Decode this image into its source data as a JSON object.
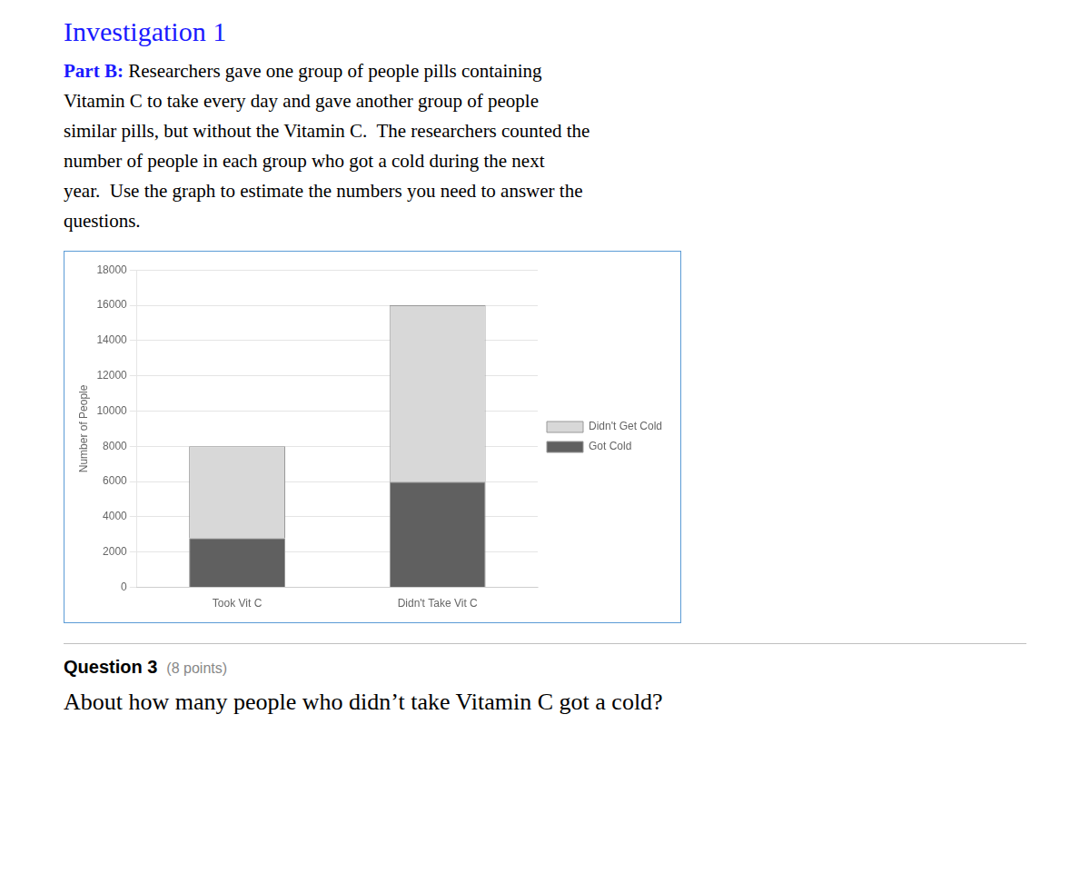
{
  "chart_data": {
    "type": "bar",
    "title": "Investigation 1",
    "annotations": [
      "Part B:",
      " Researchers gave one group of people pills containing",
      "Vitamin C to take every day and gave another group of people",
      "similar pills, but without the Vitamin C.  The researchers counted the",
      "number of people in each group who got a cold during the next",
      "year.  Use the graph to estimate the numbers you need to answer the",
      "questions.",
      "Question 3",
      "(8 points)",
      "About how many people who didn’t take Vitamin C got a cold?"
    ],
    "categories": [
      "Took Vit C",
      "Didn't Take Vit C"
    ],
    "series": [
      {
        "name": "Got Cold",
        "color": "#606060",
        "values": [
          2800,
          6000
        ]
      },
      {
        "name": "Didn't Get Cold",
        "color": "#d8d8d8",
        "values": [
          5200,
          10000
        ]
      }
    ],
    "stacked": true,
    "ylabel": "Number of People",
    "ylim": [
      0,
      18000
    ],
    "yticks": [
      0,
      2000,
      4000,
      6000,
      8000,
      10000,
      12000,
      14000,
      16000,
      18000
    ],
    "grid": true,
    "legend": "right"
  }
}
